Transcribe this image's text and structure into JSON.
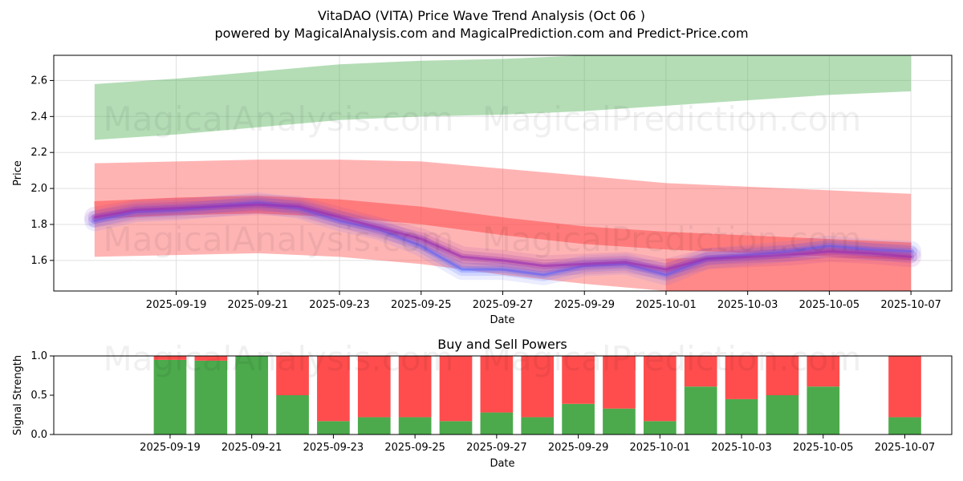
{
  "title_line1": "VitaDAO (VITA) Price Wave Trend Analysis (Oct 06 )",
  "title_line2": "powered by MagicalAnalysis.com and MagicalPrediction.com and Predict-Price.com",
  "watermarks": [
    "MagicalAnalysis.com",
    "MagicalPrediction.com"
  ],
  "colors": {
    "green_band": "#4caf50",
    "red_band": "#ff4d4d",
    "blue_line": "#5a6cff",
    "purple_line": "#9b30b0",
    "buy": "#4caa4c",
    "sell": "#ff4d4d",
    "grid": "#e0e0e0"
  },
  "chart_data": [
    {
      "type": "area",
      "title": "",
      "xlabel": "Date",
      "ylabel": "Price",
      "xlim": [
        "2025-09-16",
        "2025-10-08"
      ],
      "ylim": [
        1.43,
        2.74
      ],
      "xticks": [
        "2025-09-19",
        "2025-09-21",
        "2025-09-23",
        "2025-09-25",
        "2025-09-27",
        "2025-09-29",
        "2025-10-01",
        "2025-10-03",
        "2025-10-05",
        "2025-10-07"
      ],
      "yticks": [
        1.6,
        1.8,
        2.0,
        2.2,
        2.4,
        2.6
      ],
      "bands": [
        {
          "name": "upper band",
          "color": "green",
          "x": [
            "2025-09-17",
            "2025-09-19",
            "2025-09-21",
            "2025-09-23",
            "2025-09-25",
            "2025-09-27",
            "2025-09-29",
            "2025-10-01",
            "2025-10-03",
            "2025-10-05",
            "2025-10-07"
          ],
          "lower": [
            2.27,
            2.3,
            2.34,
            2.38,
            2.4,
            2.41,
            2.43,
            2.46,
            2.49,
            2.52,
            2.54
          ],
          "upper": [
            2.58,
            2.61,
            2.65,
            2.69,
            2.71,
            2.72,
            2.74,
            2.74,
            2.74,
            2.74,
            2.74
          ]
        },
        {
          "name": "middle band",
          "color": "red",
          "x": [
            "2025-09-17",
            "2025-09-19",
            "2025-09-21",
            "2025-09-23",
            "2025-09-25",
            "2025-09-27",
            "2025-09-29",
            "2025-10-01",
            "2025-10-03",
            "2025-10-05",
            "2025-10-07"
          ],
          "lower": [
            1.62,
            1.63,
            1.64,
            1.62,
            1.58,
            1.52,
            1.47,
            1.43,
            1.43,
            1.43,
            1.43
          ],
          "upper": [
            2.14,
            2.15,
            2.16,
            2.16,
            2.15,
            2.11,
            2.07,
            2.03,
            2.01,
            1.99,
            1.97
          ]
        },
        {
          "name": "lower band",
          "color": "red",
          "x": [
            "2025-10-01",
            "2025-10-03",
            "2025-10-05",
            "2025-10-07"
          ],
          "lower": [
            1.43,
            1.43,
            1.43,
            1.43
          ],
          "upper": [
            1.61,
            1.62,
            1.62,
            1.63
          ]
        }
      ],
      "series": [
        {
          "name": "trend line",
          "color": "red",
          "x": [
            "2025-09-17",
            "2025-09-19",
            "2025-09-21",
            "2025-09-23",
            "2025-09-25",
            "2025-09-27",
            "2025-09-29",
            "2025-10-01",
            "2025-10-03",
            "2025-10-05",
            "2025-10-07"
          ],
          "values": [
            1.88,
            1.9,
            1.91,
            1.89,
            1.85,
            1.79,
            1.74,
            1.71,
            1.69,
            1.67,
            1.65
          ]
        },
        {
          "name": "blue wave",
          "color": "blue",
          "x": [
            "2025-09-17",
            "2025-09-18",
            "2025-09-19",
            "2025-09-20",
            "2025-09-21",
            "2025-09-22",
            "2025-09-23",
            "2025-09-24",
            "2025-09-25",
            "2025-09-26",
            "2025-09-27",
            "2025-09-28",
            "2025-09-29",
            "2025-09-30",
            "2025-10-01",
            "2025-10-02",
            "2025-10-03",
            "2025-10-04",
            "2025-10-05",
            "2025-10-06",
            "2025-10-07"
          ],
          "values": [
            1.82,
            1.87,
            1.88,
            1.9,
            1.92,
            1.89,
            1.82,
            1.77,
            1.68,
            1.55,
            1.55,
            1.52,
            1.57,
            1.58,
            1.52,
            1.61,
            1.63,
            1.65,
            1.68,
            1.66,
            1.65
          ]
        },
        {
          "name": "purple wave",
          "color": "purple",
          "x": [
            "2025-09-17",
            "2025-09-18",
            "2025-09-19",
            "2025-09-20",
            "2025-09-21",
            "2025-09-22",
            "2025-09-23",
            "2025-09-24",
            "2025-09-25",
            "2025-09-26",
            "2025-09-27",
            "2025-09-28",
            "2025-09-29",
            "2025-09-30",
            "2025-10-01",
            "2025-10-02",
            "2025-10-03",
            "2025-10-04",
            "2025-10-05",
            "2025-10-06",
            "2025-10-07"
          ],
          "values": [
            1.84,
            1.88,
            1.89,
            1.9,
            1.91,
            1.9,
            1.84,
            1.78,
            1.72,
            1.62,
            1.6,
            1.57,
            1.58,
            1.59,
            1.55,
            1.61,
            1.62,
            1.63,
            1.65,
            1.64,
            1.62
          ]
        }
      ]
    },
    {
      "type": "bar",
      "title": "Buy and Sell Powers",
      "xlabel": "Date",
      "ylabel": "Signal Strength",
      "ylim": [
        0,
        1.0
      ],
      "yticks": [
        0.0,
        0.5,
        1.0
      ],
      "xticks": [
        "2025-09-19",
        "2025-09-21",
        "2025-09-23",
        "2025-09-25",
        "2025-09-27",
        "2025-09-29",
        "2025-10-01",
        "2025-10-03",
        "2025-10-05",
        "2025-10-07"
      ],
      "categories": [
        "2025-09-19",
        "2025-09-20",
        "2025-09-21",
        "2025-09-22",
        "2025-09-23",
        "2025-09-24",
        "2025-09-25",
        "2025-09-26",
        "2025-09-27",
        "2025-09-28",
        "2025-09-29",
        "2025-09-30",
        "2025-10-01",
        "2025-10-02",
        "2025-10-03",
        "2025-10-04",
        "2025-10-05",
        "2025-10-07"
      ],
      "series": [
        {
          "name": "Buy",
          "color": "green",
          "values": [
            0.95,
            0.94,
            1.0,
            0.5,
            0.17,
            0.22,
            0.22,
            0.17,
            0.28,
            0.22,
            0.39,
            0.33,
            0.17,
            0.61,
            0.45,
            0.5,
            0.61,
            0.22
          ]
        },
        {
          "name": "Sell",
          "color": "red",
          "values": [
            0.05,
            0.06,
            0.0,
            0.5,
            0.83,
            0.78,
            0.78,
            0.83,
            0.72,
            0.78,
            0.61,
            0.67,
            0.83,
            0.39,
            0.55,
            0.5,
            0.39,
            0.78
          ]
        }
      ]
    }
  ]
}
